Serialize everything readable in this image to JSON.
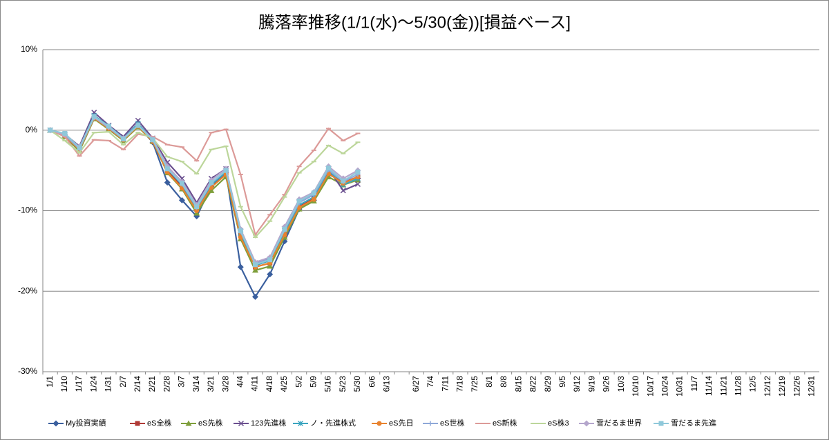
{
  "chart_data": {
    "type": "line",
    "title": "騰落率推移(1/1(水)～5/30(金))[損益ベース]",
    "categories": [
      "1/1",
      "1/10",
      "1/17",
      "1/24",
      "1/31",
      "2/7",
      "2/14",
      "2/21",
      "2/28",
      "3/7",
      "3/14",
      "3/21",
      "3/28",
      "4/4",
      "4/11",
      "4/18",
      "4/25",
      "5/2",
      "5/9",
      "5/16",
      "5/23",
      "5/30",
      "6/6",
      "6/13",
      null,
      "6/27",
      "7/4",
      "7/11",
      "7/18",
      "7/25",
      "8/1",
      "8/8",
      "8/15",
      "8/22",
      "8/29",
      "9/5",
      "9/12",
      "9/19",
      "9/26",
      "10/3",
      "10/10",
      "10/17",
      "10/24",
      "10/31",
      "11/7",
      "11/14",
      "11/21",
      "11/28",
      "12/5",
      "12/12",
      "12/19",
      "12/26",
      "12/31"
    ],
    "ylim": [
      -30,
      10
    ],
    "yticks": [
      {
        "value": -30,
        "label": "-30%"
      },
      {
        "value": -20,
        "label": "-20%"
      },
      {
        "value": -10,
        "label": "-10%"
      },
      {
        "value": 0,
        "label": "0%"
      },
      {
        "value": 10,
        "label": "10%"
      }
    ],
    "grid": true,
    "legend": "bottom",
    "series": [
      {
        "name": "My投資実績",
        "color": "#3a5f9e",
        "marker": "diamond",
        "values": [
          0,
          -0.5,
          -2.2,
          1.5,
          0.3,
          -1.0,
          0.5,
          -1.5,
          -6.5,
          -8.7,
          -10.7,
          -7.0,
          -5.2,
          -17.0,
          -20.7,
          -17.9,
          -13.8,
          -9.8,
          -8.7,
          -5.5,
          -6.3,
          -6.0,
          null,
          null,
          null,
          null,
          null,
          null,
          null,
          null,
          null,
          null,
          null,
          null,
          null,
          null,
          null,
          null,
          null,
          null,
          null,
          null,
          null,
          null,
          null,
          null,
          null,
          null,
          null,
          null,
          null,
          null,
          null
        ]
      },
      {
        "name": "eS全株",
        "color": "#b03a36",
        "marker": "square",
        "values": [
          0,
          -0.7,
          -2.5,
          1.5,
          0.2,
          -1.2,
          0.5,
          -1.3,
          -5.0,
          -7.0,
          -9.8,
          -7.0,
          -5.5,
          -13.0,
          -17.0,
          -16.5,
          -13.0,
          -9.5,
          -8.5,
          -5.3,
          -6.5,
          -5.8,
          null,
          null,
          null,
          null,
          null,
          null,
          null,
          null,
          null,
          null,
          null,
          null,
          null,
          null,
          null,
          null,
          null,
          null,
          null,
          null,
          null,
          null,
          null,
          null,
          null,
          null,
          null,
          null,
          null,
          null,
          null
        ]
      },
      {
        "name": "eS先株",
        "color": "#7e9e3a",
        "marker": "triangle",
        "values": [
          0,
          -0.8,
          -2.6,
          1.4,
          0.1,
          -1.3,
          0.4,
          -1.4,
          -5.3,
          -7.3,
          -10.3,
          -7.5,
          -5.8,
          -13.5,
          -17.4,
          -16.9,
          -13.3,
          -9.8,
          -8.8,
          -5.8,
          -6.8,
          -6.2,
          null,
          null,
          null,
          null,
          null,
          null,
          null,
          null,
          null,
          null,
          null,
          null,
          null,
          null,
          null,
          null,
          null,
          null,
          null,
          null,
          null,
          null,
          null,
          null,
          null,
          null,
          null,
          null,
          null,
          null,
          null
        ]
      },
      {
        "name": "123先進株",
        "color": "#6a4f8f",
        "marker": "x",
        "values": [
          0,
          -0.5,
          -2.0,
          2.2,
          0.6,
          -0.8,
          1.2,
          -1.0,
          -4.0,
          -6.0,
          -9.0,
          -6.0,
          -4.8,
          -12.5,
          -16.5,
          -16.0,
          -12.5,
          -9.0,
          -8.0,
          -4.8,
          -7.5,
          -6.7,
          null,
          null,
          null,
          null,
          null,
          null,
          null,
          null,
          null,
          null,
          null,
          null,
          null,
          null,
          null,
          null,
          null,
          null,
          null,
          null,
          null,
          null,
          null,
          null,
          null,
          null,
          null,
          null,
          null,
          null,
          null
        ]
      },
      {
        "name": "ノ・先進株式",
        "color": "#3aa4bf",
        "marker": "star",
        "values": [
          0,
          -0.6,
          -2.2,
          1.8,
          0.5,
          -1.0,
          0.8,
          -1.2,
          -4.8,
          -6.8,
          -9.8,
          -6.8,
          -5.2,
          -12.8,
          -16.8,
          -16.2,
          -12.8,
          -9.3,
          -8.3,
          -5.0,
          -6.8,
          -6.0,
          null,
          null,
          null,
          null,
          null,
          null,
          null,
          null,
          null,
          null,
          null,
          null,
          null,
          null,
          null,
          null,
          null,
          null,
          null,
          null,
          null,
          null,
          null,
          null,
          null,
          null,
          null,
          null,
          null,
          null,
          null
        ]
      },
      {
        "name": "eS先日",
        "color": "#e8822e",
        "marker": "circle",
        "values": [
          0,
          -0.7,
          -2.4,
          1.5,
          0.2,
          -1.2,
          0.5,
          -1.4,
          -5.2,
          -7.2,
          -10.0,
          -7.1,
          -5.5,
          -13.3,
          -17.0,
          -16.5,
          -13.0,
          -9.6,
          -8.6,
          -5.4,
          -6.6,
          -5.8,
          null,
          null,
          null,
          null,
          null,
          null,
          null,
          null,
          null,
          null,
          null,
          null,
          null,
          null,
          null,
          null,
          null,
          null,
          null,
          null,
          null,
          null,
          null,
          null,
          null,
          null,
          null,
          null,
          null,
          null,
          null
        ]
      },
      {
        "name": "eS世株",
        "color": "#8ea8d8",
        "marker": "plus",
        "values": [
          0,
          -0.6,
          -2.3,
          1.6,
          0.3,
          -1.1,
          0.6,
          -1.2,
          -4.7,
          -6.7,
          -9.6,
          -6.6,
          -5.0,
          -12.6,
          -16.6,
          -16.0,
          -12.4,
          -9.0,
          -8.0,
          -4.9,
          -6.4,
          -5.5,
          null,
          null,
          null,
          null,
          null,
          null,
          null,
          null,
          null,
          null,
          null,
          null,
          null,
          null,
          null,
          null,
          null,
          null,
          null,
          null,
          null,
          null,
          null,
          null,
          null,
          null,
          null,
          null,
          null,
          null,
          null
        ]
      },
      {
        "name": "eS新株",
        "color": "#dc9a98",
        "marker": "dash",
        "values": [
          0,
          -0.8,
          -3.2,
          -1.2,
          -1.3,
          -2.4,
          -0.5,
          -0.8,
          -1.8,
          -2.1,
          -3.8,
          -0.3,
          0.1,
          -5.5,
          -13.0,
          -10.5,
          -8.0,
          -4.5,
          -2.5,
          0.2,
          -1.3,
          -0.4,
          null,
          null,
          null,
          null,
          null,
          null,
          null,
          null,
          null,
          null,
          null,
          null,
          null,
          null,
          null,
          null,
          null,
          null,
          null,
          null,
          null,
          null,
          null,
          null,
          null,
          null,
          null,
          null,
          null,
          null,
          null
        ]
      },
      {
        "name": "eS株3",
        "color": "#bcd69a",
        "marker": "dash",
        "values": [
          0,
          -1.3,
          -2.8,
          -0.3,
          -0.2,
          -1.8,
          -0.3,
          -1.0,
          -3.3,
          -3.9,
          -5.4,
          -2.4,
          -2.0,
          -9.5,
          -13.3,
          -11.3,
          -8.3,
          -5.3,
          -3.9,
          -1.9,
          -2.9,
          -1.5,
          null,
          null,
          null,
          null,
          null,
          null,
          null,
          null,
          null,
          null,
          null,
          null,
          null,
          null,
          null,
          null,
          null,
          null,
          null,
          null,
          null,
          null,
          null,
          null,
          null,
          null,
          null,
          null,
          null,
          null,
          null
        ]
      },
      {
        "name": "雪だるま世界",
        "color": "#b4a6cc",
        "marker": "diamond",
        "values": [
          0,
          -0.5,
          -2.1,
          1.6,
          0.4,
          -1.0,
          0.6,
          -1.1,
          -4.5,
          -6.4,
          -9.3,
          -6.2,
          -4.8,
          -12.3,
          -16.4,
          -15.8,
          -12.0,
          -8.6,
          -7.7,
          -4.5,
          -6.0,
          -5.0,
          null,
          null,
          null,
          null,
          null,
          null,
          null,
          null,
          null,
          null,
          null,
          null,
          null,
          null,
          null,
          null,
          null,
          null,
          null,
          null,
          null,
          null,
          null,
          null,
          null,
          null,
          null,
          null,
          null,
          null,
          null
        ]
      },
      {
        "name": "雪だるま先進",
        "color": "#8fc8da",
        "marker": "square",
        "values": [
          0,
          -0.4,
          -2.2,
          1.7,
          0.5,
          -1.1,
          0.6,
          -1.2,
          -4.8,
          -6.6,
          -9.5,
          -6.5,
          -5.0,
          -12.5,
          -16.7,
          -16.1,
          -12.3,
          -8.8,
          -7.8,
          -4.7,
          -6.3,
          -5.2,
          null,
          null,
          null,
          null,
          null,
          null,
          null,
          null,
          null,
          null,
          null,
          null,
          null,
          null,
          null,
          null,
          null,
          null,
          null,
          null,
          null,
          null,
          null,
          null,
          null,
          null,
          null,
          null,
          null,
          null,
          null
        ]
      }
    ]
  }
}
